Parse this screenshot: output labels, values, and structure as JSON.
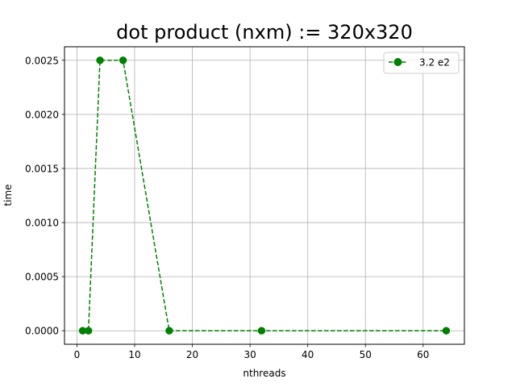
{
  "chart_data": {
    "type": "line",
    "title": "dot product (nxm) := 320x320",
    "xlabel": "nthreads",
    "ylabel": "time",
    "xlim": [
      -2.15,
      67.15
    ],
    "ylim": [
      -0.000125,
      0.002625
    ],
    "xticks": [
      0,
      10,
      20,
      30,
      40,
      50,
      60
    ],
    "yticks": [
      0.0,
      0.0005,
      0.001,
      0.0015,
      0.002,
      0.0025
    ],
    "xtick_labels": [
      "0",
      "10",
      "20",
      "30",
      "40",
      "50",
      "60"
    ],
    "ytick_labels": [
      "0.0000",
      "0.0005",
      "0.0010",
      "0.0015",
      "0.0020",
      "0.0025"
    ],
    "grid": true,
    "legend_position": "top-right",
    "series": [
      {
        "name": "3.2 e2",
        "color": "#008000",
        "line_style": "dashed",
        "marker": "circle",
        "x": [
          1,
          2,
          4,
          8,
          16,
          32,
          64
        ],
        "y": [
          0.0,
          0.0,
          0.0025,
          0.0025,
          0.0,
          0.0,
          0.0
        ]
      }
    ]
  }
}
